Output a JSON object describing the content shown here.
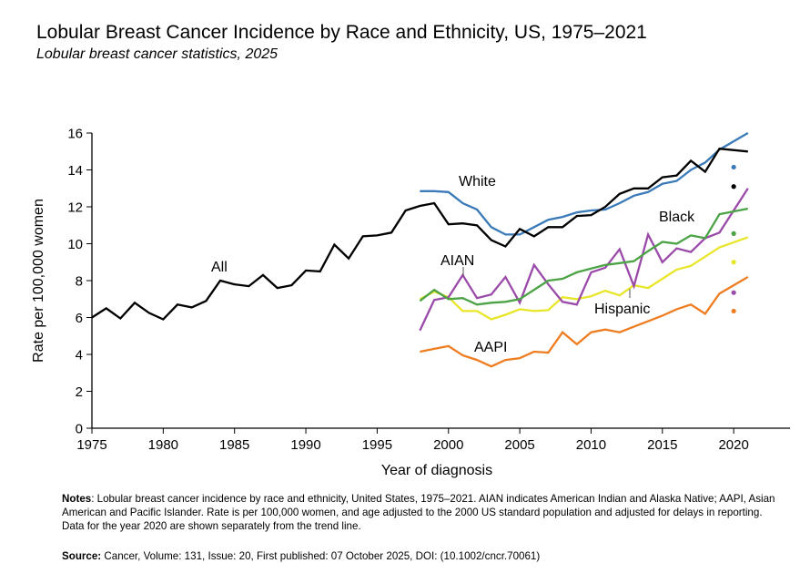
{
  "title": "Lobular Breast Cancer Incidence by Race and Ethnicity, US, 1975–2021",
  "subtitle": "Lobular breast cancer statistics, 2025",
  "notes_label": "Notes",
  "notes": ": Lobular breast cancer incidence by race and ethnicity, United States, 1975–2021. AIAN indicates American Indian and Alaska Native; AAPI, Asian American and Pacific Islander. Rate is per 100,000 women, and age adjusted to the 2000 US standard population and adjusted for delays in reporting. Data for the year 2020 are shown separately from the trend line.",
  "source_label": "Source:",
  "source": " Cancer, Volume: 131, Issue: 20, First published: 07 October 2025, DOI: (10.1002/cncr.70061)",
  "chart_data": {
    "type": "line",
    "xlabel": "Year of diagnosis",
    "ylabel": "Rate per 100,000 women",
    "xlim": [
      1975,
      2023
    ],
    "ylim": [
      0,
      16
    ],
    "xticks": [
      1975,
      1980,
      1985,
      1990,
      1995,
      2000,
      2005,
      2010,
      2015,
      2020
    ],
    "yticks": [
      0,
      2,
      4,
      6,
      8,
      10,
      12,
      14,
      16
    ],
    "grid": false,
    "series": [
      {
        "name": "All",
        "color": "#000000",
        "x": [
          1975,
          1976,
          1977,
          1978,
          1979,
          1980,
          1981,
          1982,
          1983,
          1984,
          1985,
          1986,
          1987,
          1988,
          1989,
          1990,
          1991,
          1992,
          1993,
          1994,
          1995,
          1996,
          1997,
          1998,
          1999,
          2000,
          2001,
          2002,
          2003,
          2004,
          2005,
          2006,
          2007,
          2008,
          2009,
          2010,
          2011,
          2012,
          2013,
          2014,
          2015,
          2016,
          2017,
          2018,
          2019,
          2021
        ],
        "y": [
          6.0,
          6.5,
          5.95,
          6.8,
          6.25,
          5.9,
          6.7,
          6.55,
          6.9,
          8.0,
          7.8,
          7.7,
          8.3,
          7.6,
          7.75,
          8.55,
          8.5,
          9.95,
          9.2,
          10.4,
          10.45,
          10.6,
          11.8,
          12.05,
          12.2,
          11.05,
          11.1,
          11.0,
          10.2,
          9.85,
          10.8,
          10.4,
          10.9,
          10.9,
          11.5,
          11.55,
          12.0,
          12.7,
          13.0,
          13.0,
          13.6,
          13.7,
          14.5,
          13.9,
          15.15,
          15.0
        ],
        "y2020": 13.1
      },
      {
        "name": "White",
        "color": "#3a7ab8",
        "x": [
          1998,
          1999,
          2000,
          2001,
          2002,
          2003,
          2004,
          2005,
          2006,
          2007,
          2008,
          2009,
          2010,
          2011,
          2012,
          2013,
          2014,
          2015,
          2016,
          2017,
          2018,
          2019,
          2021
        ],
        "y": [
          12.85,
          12.85,
          12.8,
          12.2,
          11.85,
          10.9,
          10.5,
          10.5,
          10.9,
          11.3,
          11.45,
          11.7,
          11.8,
          11.85,
          12.2,
          12.6,
          12.8,
          13.25,
          13.4,
          14.0,
          14.4,
          15.1,
          16.0
        ],
        "y2020": 14.15
      },
      {
        "name": "Black",
        "color": "#4ca346",
        "x": [
          1998,
          1999,
          2000,
          2001,
          2002,
          2003,
          2004,
          2005,
          2006,
          2007,
          2008,
          2009,
          2010,
          2011,
          2012,
          2013,
          2014,
          2015,
          2016,
          2017,
          2018,
          2019,
          2021
        ],
        "y": [
          6.9,
          7.5,
          7.0,
          7.05,
          6.7,
          6.8,
          6.85,
          7.0,
          7.5,
          8.0,
          8.1,
          8.45,
          8.65,
          8.85,
          8.95,
          9.05,
          9.6,
          10.1,
          10.0,
          10.45,
          10.3,
          11.6,
          11.9
        ],
        "y2020": 10.55
      },
      {
        "name": "AIAN",
        "color": "#9a4aa8",
        "x": [
          1998,
          1999,
          2000,
          2001,
          2002,
          2003,
          2004,
          2005,
          2006,
          2007,
          2008,
          2009,
          2010,
          2011,
          2012,
          2013,
          2014,
          2015,
          2016,
          2017,
          2018,
          2019,
          2021
        ],
        "y": [
          5.3,
          6.95,
          7.1,
          8.3,
          7.05,
          7.25,
          8.2,
          6.8,
          8.85,
          7.8,
          6.85,
          6.7,
          8.45,
          8.7,
          9.7,
          7.7,
          10.5,
          9.0,
          9.75,
          9.55,
          10.3,
          10.6,
          13.0
        ],
        "y2020": 7.35
      },
      {
        "name": "Hispanic",
        "color": "#e8e62a",
        "x": [
          1998,
          1999,
          2000,
          2001,
          2002,
          2003,
          2004,
          2005,
          2006,
          2007,
          2008,
          2009,
          2010,
          2011,
          2012,
          2013,
          2014,
          2015,
          2016,
          2017,
          2018,
          2019,
          2021
        ],
        "y": [
          7.0,
          7.4,
          7.1,
          6.35,
          6.35,
          5.9,
          6.15,
          6.45,
          6.35,
          6.4,
          7.1,
          7.0,
          7.15,
          7.45,
          7.2,
          7.75,
          7.6,
          8.1,
          8.6,
          8.8,
          9.3,
          9.8,
          10.35
        ],
        "y2020": 9.0
      },
      {
        "name": "AAPI",
        "color": "#ee7d22",
        "x": [
          1998,
          1999,
          2000,
          2001,
          2002,
          2003,
          2004,
          2005,
          2006,
          2007,
          2008,
          2009,
          2010,
          2011,
          2012,
          2013,
          2014,
          2015,
          2016,
          2017,
          2018,
          2019,
          2021
        ],
        "y": [
          4.15,
          4.3,
          4.45,
          3.95,
          3.7,
          3.35,
          3.7,
          3.8,
          4.15,
          4.1,
          5.2,
          4.55,
          5.2,
          5.35,
          5.2,
          5.5,
          5.8,
          6.1,
          6.45,
          6.7,
          6.2,
          7.3,
          8.2
        ],
        "y2020": 6.35
      }
    ],
    "annotations": [
      "All",
      "White",
      "Black",
      "AIAN",
      "Hispanic",
      "AAPI"
    ]
  }
}
